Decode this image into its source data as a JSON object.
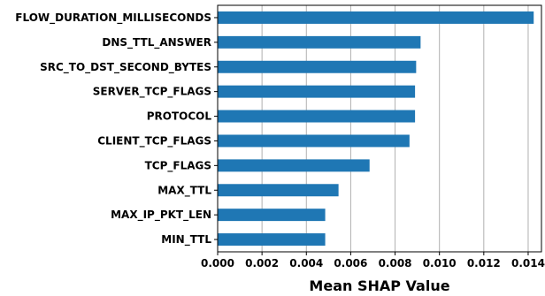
{
  "chart_data": {
    "type": "bar",
    "orientation": "horizontal",
    "categories": [
      "FLOW_DURATION_MILLISECONDS",
      "DNS_TTL_ANSWER",
      "SRC_TO_DST_SECOND_BYTES",
      "SERVER_TCP_FLAGS",
      "PROTOCOL",
      "CLIENT_TCP_FLAGS",
      "TCP_FLAGS",
      "MAX_TTL",
      "MAX_IP_PKT_LEN",
      "MIN_TTL"
    ],
    "values": [
      0.01425,
      0.00915,
      0.00895,
      0.0089,
      0.0089,
      0.00865,
      0.00685,
      0.00545,
      0.00485,
      0.00485
    ],
    "xlabel": "Mean SHAP Value",
    "ylabel": "",
    "xlim": [
      0,
      0.0146
    ],
    "xticks": [
      "0.000",
      "0.002",
      "0.004",
      "0.006",
      "0.008",
      "0.010",
      "0.012",
      "0.014"
    ],
    "grid": "vertical",
    "bar_color": "#1f77b4",
    "grid_color": "#b0b0b0"
  }
}
